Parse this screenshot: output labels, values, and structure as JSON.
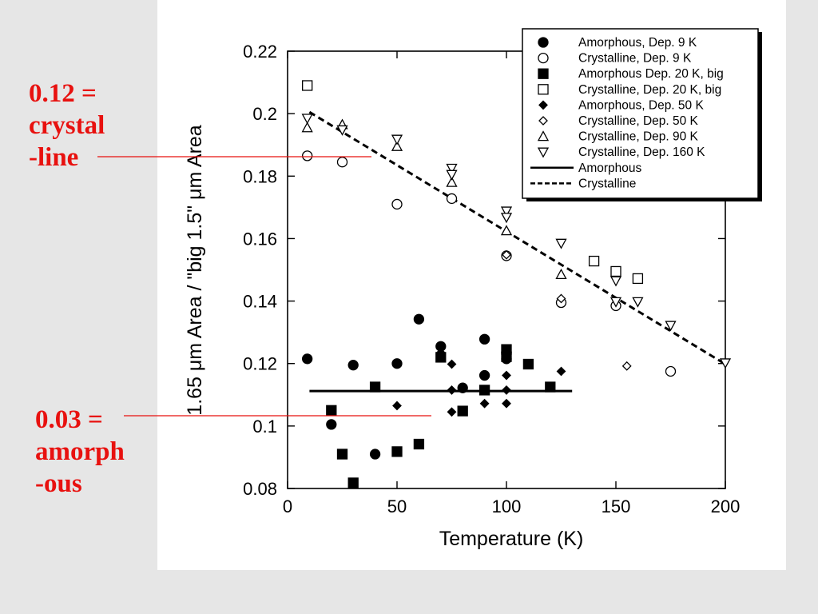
{
  "annotations": [
    {
      "lines": [
        "0.12 =",
        "crystal",
        "-line"
      ],
      "value": 0.12,
      "target": "crystalline"
    },
    {
      "lines": [
        "0.03 =",
        "amorph",
        "-ous"
      ],
      "value": 0.03,
      "target": "amorphous"
    }
  ],
  "colors": {
    "annotation": "#e8110f",
    "background": "#e6e6e6",
    "panel": "#ffffff",
    "ink": "#000000"
  },
  "chart_data": {
    "type": "scatter",
    "title": "",
    "xlabel": "Temperature (K)",
    "ylabel": "1.65 μm Area / \"big 1.5\" μm Area",
    "xlim": [
      0,
      200
    ],
    "ylim": [
      0.08,
      0.22
    ],
    "xticks": [
      0,
      50,
      100,
      150,
      200
    ],
    "yticks": [
      0.08,
      0.1,
      0.12,
      0.14,
      0.16,
      0.18,
      0.2,
      0.22
    ],
    "ytick_labels": [
      "0.08",
      "0.1",
      "0.12",
      "0.14",
      "0.16",
      "0.18",
      "0.2",
      "0.22"
    ],
    "grid": false,
    "legend_position": "top-right",
    "series": [
      {
        "name": "Amorphous, Dep. 9 K",
        "marker": "circle-filled",
        "x": [
          9,
          20,
          30,
          40,
          50,
          60,
          70,
          80,
          90,
          90,
          100,
          100
        ],
        "y": [
          0.1215,
          0.1005,
          0.1195,
          0.091,
          0.12,
          0.1342,
          0.1255,
          0.1122,
          0.1278,
          0.1162,
          0.1215,
          0.1235
        ]
      },
      {
        "name": "Crystalline, Dep. 9 K",
        "marker": "circle-open",
        "x": [
          9,
          25,
          50,
          75,
          100,
          125,
          150,
          175
        ],
        "y": [
          0.1865,
          0.1845,
          0.171,
          0.1728,
          0.1545,
          0.1395,
          0.1385,
          0.1175
        ]
      },
      {
        "name": "Amorphous Dep. 20 K, big",
        "marker": "square-filled",
        "x": [
          20,
          25,
          30,
          40,
          50,
          60,
          70,
          80,
          90,
          100,
          100,
          110,
          120
        ],
        "y": [
          0.105,
          0.091,
          0.0818,
          0.1125,
          0.0918,
          0.0942,
          0.122,
          0.1048,
          0.1115,
          0.1222,
          0.1245,
          0.1198,
          0.1125
        ]
      },
      {
        "name": "Crystalline, Dep. 20 K, big",
        "marker": "square-open",
        "x": [
          9,
          140,
          150,
          160
        ],
        "y": [
          0.209,
          0.1528,
          0.1495,
          0.1472
        ]
      },
      {
        "name": "Amorphous, Dep. 50 K",
        "marker": "diamond-filled",
        "x": [
          50,
          70,
          75,
          75,
          75,
          90,
          100,
          100,
          100,
          125
        ],
        "y": [
          0.1065,
          0.1235,
          0.1198,
          0.1115,
          0.1045,
          0.1072,
          0.1115,
          0.1162,
          0.1072,
          0.1175
        ]
      },
      {
        "name": "Crystalline, Dep. 50 K",
        "marker": "diamond-open",
        "x": [
          100,
          125,
          155
        ],
        "y": [
          0.1548,
          0.1408,
          0.1192
        ]
      },
      {
        "name": "Crystalline, Dep. 90 K",
        "marker": "triangle-up-open",
        "x": [
          9,
          25,
          50,
          75,
          100,
          125
        ],
        "y": [
          0.1955,
          0.1965,
          0.1895,
          0.178,
          0.1625,
          0.1485
        ]
      },
      {
        "name": "Crystalline, Dep. 160 K",
        "marker": "triangle-down-open",
        "x": [
          9,
          25,
          50,
          75,
          75,
          100,
          100,
          125,
          150,
          150,
          160,
          175,
          200
        ],
        "y": [
          0.1985,
          0.1948,
          0.1918,
          0.1825,
          0.1805,
          0.1688,
          0.1668,
          0.1585,
          0.1465,
          0.1398,
          0.1398,
          0.1322,
          0.1202
        ]
      }
    ],
    "lines": [
      {
        "name": "Amorphous",
        "style": "solid",
        "x": [
          10,
          130
        ],
        "y": [
          0.1112,
          0.1112
        ]
      },
      {
        "name": "Crystalline",
        "style": "dashed",
        "x": [
          10,
          200
        ],
        "y": [
          0.2005,
          0.1198
        ]
      }
    ]
  }
}
